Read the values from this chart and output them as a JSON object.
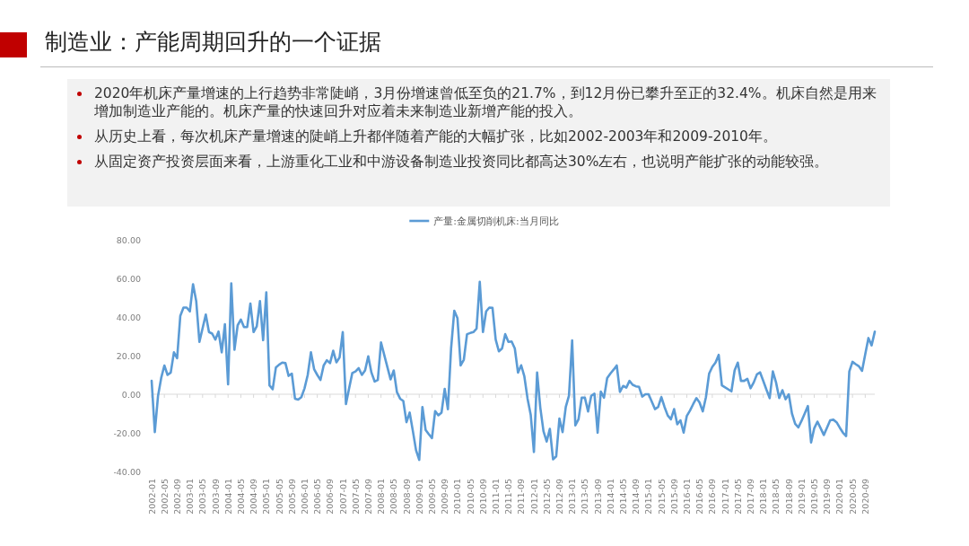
{
  "chart_data": {
    "type": "line",
    "title": "制造业：产能周期回升的一个证据",
    "annotations": [
      "2020年机床产量增速的上行趋势非常陡峭，3月份增速曾低至负的21.7%，到12月份已攀升至正的32.4%。机床自然是用来增加制造业产能的。机床产量的快速回升对应着未来制造业新增产能的投入。",
      "从历史上看，每次机床产量增速的陡峭上升都伴随着产能的大幅扩张，比如2002-2003年和2009-2010年。",
      "从固定资产投资层面来看，上游重化工业和中游设备制造业投资同比都高达30%左右，也说明产能扩张的动能较强。"
    ],
    "legend": "top",
    "xlim": [
      "2002-01",
      "2020-12"
    ],
    "xticks": [
      "2002-01",
      "2002-05",
      "2002-09",
      "2003-01",
      "2003-05",
      "2003-09",
      "2004-01",
      "2004-05",
      "2004-09",
      "2005-01",
      "2005-05",
      "2005-09",
      "2006-01",
      "2006-05",
      "2006-09",
      "2007-01",
      "2007-05",
      "2007-09",
      "2008-01",
      "2008-05",
      "2008-09",
      "2009-01",
      "2009-05",
      "2009-09",
      "2010-01",
      "2010-05",
      "2010-09",
      "2011-01",
      "2011-05",
      "2011-09",
      "2012-01",
      "2012-05",
      "2012-09",
      "2013-01",
      "2013-05",
      "2013-09",
      "2014-01",
      "2014-05",
      "2014-09",
      "2015-01",
      "2015-05",
      "2015-09",
      "2016-01",
      "2016-05",
      "2016-09",
      "2017-01",
      "2017-05",
      "2017-09",
      "2018-01",
      "2018-05",
      "2018-09",
      "2019-01",
      "2019-05",
      "2019-09",
      "2020-01",
      "2020-05",
      "2020-09"
    ],
    "ylim": [
      -40,
      80
    ],
    "yticks": [
      {
        "value": -40,
        "label": "-40.00"
      },
      {
        "value": -20,
        "label": "-20.00"
      },
      {
        "value": 0,
        "label": "0.00"
      },
      {
        "value": 20,
        "label": "20.00"
      },
      {
        "value": 40,
        "label": "40.00"
      },
      {
        "value": 60,
        "label": "60.00"
      },
      {
        "value": 80,
        "label": "80.00"
      }
    ],
    "series": [
      {
        "name": "产量:金属切削机床:当月同比",
        "color": "#5b9bd5",
        "x": [
          "2002-01",
          "2002-02",
          "2002-03",
          "2002-04",
          "2002-05",
          "2002-06",
          "2002-07",
          "2002-08",
          "2002-09",
          "2002-10",
          "2002-11",
          "2002-12",
          "2003-01",
          "2003-02",
          "2003-03",
          "2003-04",
          "2003-06",
          "2003-07",
          "2003-08",
          "2003-09",
          "2003-10",
          "2003-11",
          "2003-12",
          "2004-01",
          "2004-02",
          "2004-03",
          "2004-04",
          "2004-05",
          "2004-06",
          "2004-07",
          "2004-08",
          "2004-09",
          "2004-10",
          "2004-11",
          "2004-12",
          "2005-01",
          "2005-02",
          "2005-03",
          "2005-04",
          "2005-05",
          "2005-06",
          "2005-07",
          "2005-08",
          "2005-09",
          "2005-10",
          "2005-11",
          "2005-12",
          "2006-01",
          "2006-02",
          "2006-03",
          "2006-04",
          "2006-05",
          "2006-06",
          "2006-07",
          "2006-08",
          "2006-09",
          "2006-10",
          "2006-11",
          "2006-12",
          "2007-01",
          "2007-02",
          "2007-03",
          "2007-04",
          "2007-05",
          "2007-06",
          "2007-07",
          "2007-08",
          "2007-09",
          "2007-10",
          "2007-11",
          "2007-12",
          "2008-01",
          "2008-04",
          "2008-05",
          "2008-06",
          "2008-07",
          "2008-08",
          "2008-09",
          "2008-10",
          "2008-11",
          "2008-12",
          "2009-01",
          "2009-02",
          "2009-03",
          "2009-04",
          "2009-05",
          "2009-06",
          "2009-07",
          "2009-08",
          "2009-09",
          "2009-10",
          "2009-11",
          "2009-12",
          "2010-01",
          "2010-02",
          "2010-03",
          "2010-04",
          "2010-05",
          "2010-06",
          "2010-07",
          "2010-08",
          "2010-09",
          "2010-10",
          "2010-11",
          "2010-12",
          "2011-01",
          "2011-02",
          "2011-03",
          "2011-04",
          "2011-05",
          "2011-06",
          "2011-07",
          "2011-08",
          "2011-09",
          "2011-10",
          "2011-11",
          "2011-12",
          "2012-01",
          "2012-02",
          "2012-03",
          "2012-04",
          "2012-05",
          "2012-06",
          "2012-07",
          "2012-08",
          "2012-09",
          "2012-10",
          "2012-11",
          "2012-12",
          "2013-01",
          "2013-02",
          "2013-03",
          "2013-04",
          "2013-05",
          "2013-06",
          "2013-07",
          "2013-08",
          "2013-09",
          "2013-10",
          "2013-11",
          "2013-12",
          "2014-01",
          "2014-02",
          "2014-03",
          "2014-04",
          "2014-05",
          "2014-06",
          "2014-07",
          "2014-08",
          "2014-09",
          "2014-10",
          "2014-11",
          "2014-12",
          "2015-01",
          "2015-02",
          "2015-03",
          "2015-04",
          "2015-05",
          "2015-06",
          "2015-07",
          "2015-08",
          "2015-09",
          "2015-10",
          "2015-11",
          "2015-12",
          "2016-01",
          "2016-02",
          "2016-03",
          "2016-04",
          "2016-05",
          "2016-06",
          "2016-07",
          "2016-08",
          "2016-09",
          "2016-10",
          "2016-11",
          "2016-12",
          "2017-03",
          "2017-04",
          "2017-05",
          "2017-06",
          "2017-07",
          "2017-08",
          "2017-09",
          "2017-10",
          "2017-11",
          "2017-12",
          "2018-01",
          "2018-02",
          "2018-03",
          "2018-04",
          "2018-05",
          "2018-06",
          "2018-07",
          "2018-08",
          "2018-09",
          "2018-10",
          "2018-11",
          "2018-12",
          "2019-01",
          "2019-02",
          "2019-03",
          "2019-04",
          "2019-05",
          "2019-06",
          "2019-07",
          "2019-08",
          "2019-09",
          "2019-10",
          "2019-11",
          "2019-12",
          "2020-01",
          "2020-02",
          "2020-03",
          "2020-04",
          "2020-05",
          "2020-06",
          "2020-07",
          "2020-08",
          "2020-09",
          "2020-10",
          "2020-11",
          "2020-12"
        ],
        "values": [
          7,
          -19.6,
          -1,
          8.4,
          14.9,
          10,
          11.2,
          21.7,
          18.7,
          40.6,
          44.9,
          44.9,
          42.9,
          57,
          48.2,
          27.1,
          41.3,
          32.2,
          31.4,
          28.3,
          32.5,
          21.7,
          36.3,
          5.1,
          57.4,
          23,
          35.7,
          38.7,
          34.8,
          34.8,
          47,
          32.2,
          35.2,
          48.2,
          28,
          52.8,
          4.6,
          2.6,
          13.8,
          15.3,
          16.4,
          16.1,
          9.5,
          10.7,
          -2.3,
          -2.8,
          -1.5,
          3.1,
          10,
          21.7,
          13,
          10,
          7.4,
          14.9,
          17.6,
          16.1,
          22.5,
          16.5,
          19.1,
          32.2,
          -5.1,
          3.1,
          11,
          11.8,
          13.5,
          10,
          12.3,
          19.6,
          11.2,
          6.6,
          7.4,
          26.8,
          7.7,
          12.3,
          1.1,
          -2.3,
          -3.5,
          -14.5,
          -9.5,
          -19,
          -29,
          -34,
          -6.6,
          -18.5,
          -20.7,
          -22.7,
          -8.7,
          -10.9,
          -9.5,
          2.8,
          -7.8,
          23.7,
          43.2,
          39.4,
          14.9,
          17.9,
          31.1,
          31.7,
          32.2,
          34,
          58.2,
          32.2,
          42.9,
          44.9,
          44.7,
          28.3,
          22.2,
          23.7,
          31.1,
          27.1,
          27.3,
          23.7,
          11.2,
          15,
          9.2,
          -2.3,
          -10.7,
          -29.9,
          11.2,
          -6.9,
          -19.1,
          -24.5,
          -17.9,
          -33.7,
          -32.2,
          -12.6,
          -19.6,
          -6.6,
          -0.8,
          27.9,
          -16.1,
          -13,
          -1.8,
          -1.8,
          -8.9,
          -0.8,
          0.3,
          -19.9,
          1.4,
          -1.8,
          8.4,
          10.7,
          12.7,
          14.9,
          1.2,
          4.3,
          3.4,
          6.9,
          4.9,
          4.1,
          3.8,
          -1.2,
          0,
          0,
          -3.8,
          -7.7,
          -6.6,
          -1.5,
          -6.6,
          -11,
          -13,
          -7.7,
          -15.6,
          -13.5,
          -19.9,
          -11.2,
          -8.4,
          -5.1,
          -2,
          -4.3,
          -8.9,
          -1.5,
          10.7,
          14.2,
          16.4,
          20.4,
          4.6,
          1.5,
          12.3,
          16.4,
          6.9,
          6.9,
          8,
          3.1,
          6.1,
          10.3,
          11.3,
          6.9,
          2.3,
          -2,
          11.8,
          6.1,
          -2,
          2.1,
          -2.6,
          0,
          -10,
          -15.3,
          -17.2,
          -13.8,
          -10,
          -6.1,
          -25,
          -17.6,
          -14.2,
          -17.6,
          -21.1,
          -17.3,
          -13.5,
          -13.2,
          -14.5,
          -17.3,
          -19.9,
          -21.7,
          11.8,
          16.8,
          15.6,
          14.5,
          12.1,
          20.7,
          29.1,
          25.3,
          32.4
        ]
      }
    ]
  }
}
